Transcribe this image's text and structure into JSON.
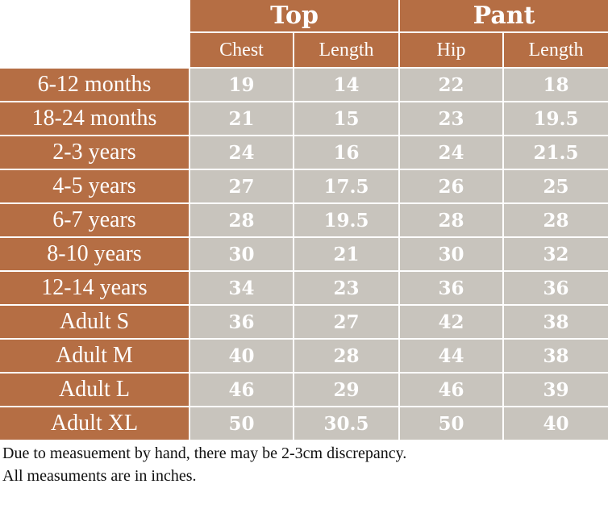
{
  "table": {
    "groups": [
      {
        "label": "Top",
        "columns": [
          "Chest",
          "Length"
        ]
      },
      {
        "label": "Pant",
        "columns": [
          "Hip",
          "Length"
        ]
      }
    ],
    "rows": [
      {
        "size": "6-12 months",
        "values": [
          "19",
          "14",
          "22",
          "18"
        ]
      },
      {
        "size": "18-24 months",
        "values": [
          "21",
          "15",
          "23",
          "19.5"
        ]
      },
      {
        "size": "2-3 years",
        "values": [
          "24",
          "16",
          "24",
          "21.5"
        ]
      },
      {
        "size": "4-5 years",
        "values": [
          "27",
          "17.5",
          "26",
          "25"
        ]
      },
      {
        "size": "6-7 years",
        "values": [
          "28",
          "19.5",
          "28",
          "28"
        ]
      },
      {
        "size": "8-10 years",
        "values": [
          "30",
          "21",
          "30",
          "32"
        ]
      },
      {
        "size": "12-14 years",
        "values": [
          "34",
          "23",
          "36",
          "36"
        ]
      },
      {
        "size": "Adult S",
        "values": [
          "36",
          "27",
          "42",
          "38"
        ]
      },
      {
        "size": "Adult M",
        "values": [
          "40",
          "28",
          "44",
          "38"
        ]
      },
      {
        "size": "Adult L",
        "values": [
          "46",
          "29",
          "46",
          "39"
        ]
      },
      {
        "size": "Adult XL",
        "values": [
          "50",
          "30.5",
          "50",
          "40"
        ]
      }
    ]
  },
  "notes": {
    "line1": "Due to measuement by hand, there may be 2-3cm discrepancy.",
    "line2": "All measuments are in inches."
  },
  "colors": {
    "header_bg": "#b56e44",
    "value_bg": "#c8c4bd",
    "text_light": "#ffffff"
  }
}
